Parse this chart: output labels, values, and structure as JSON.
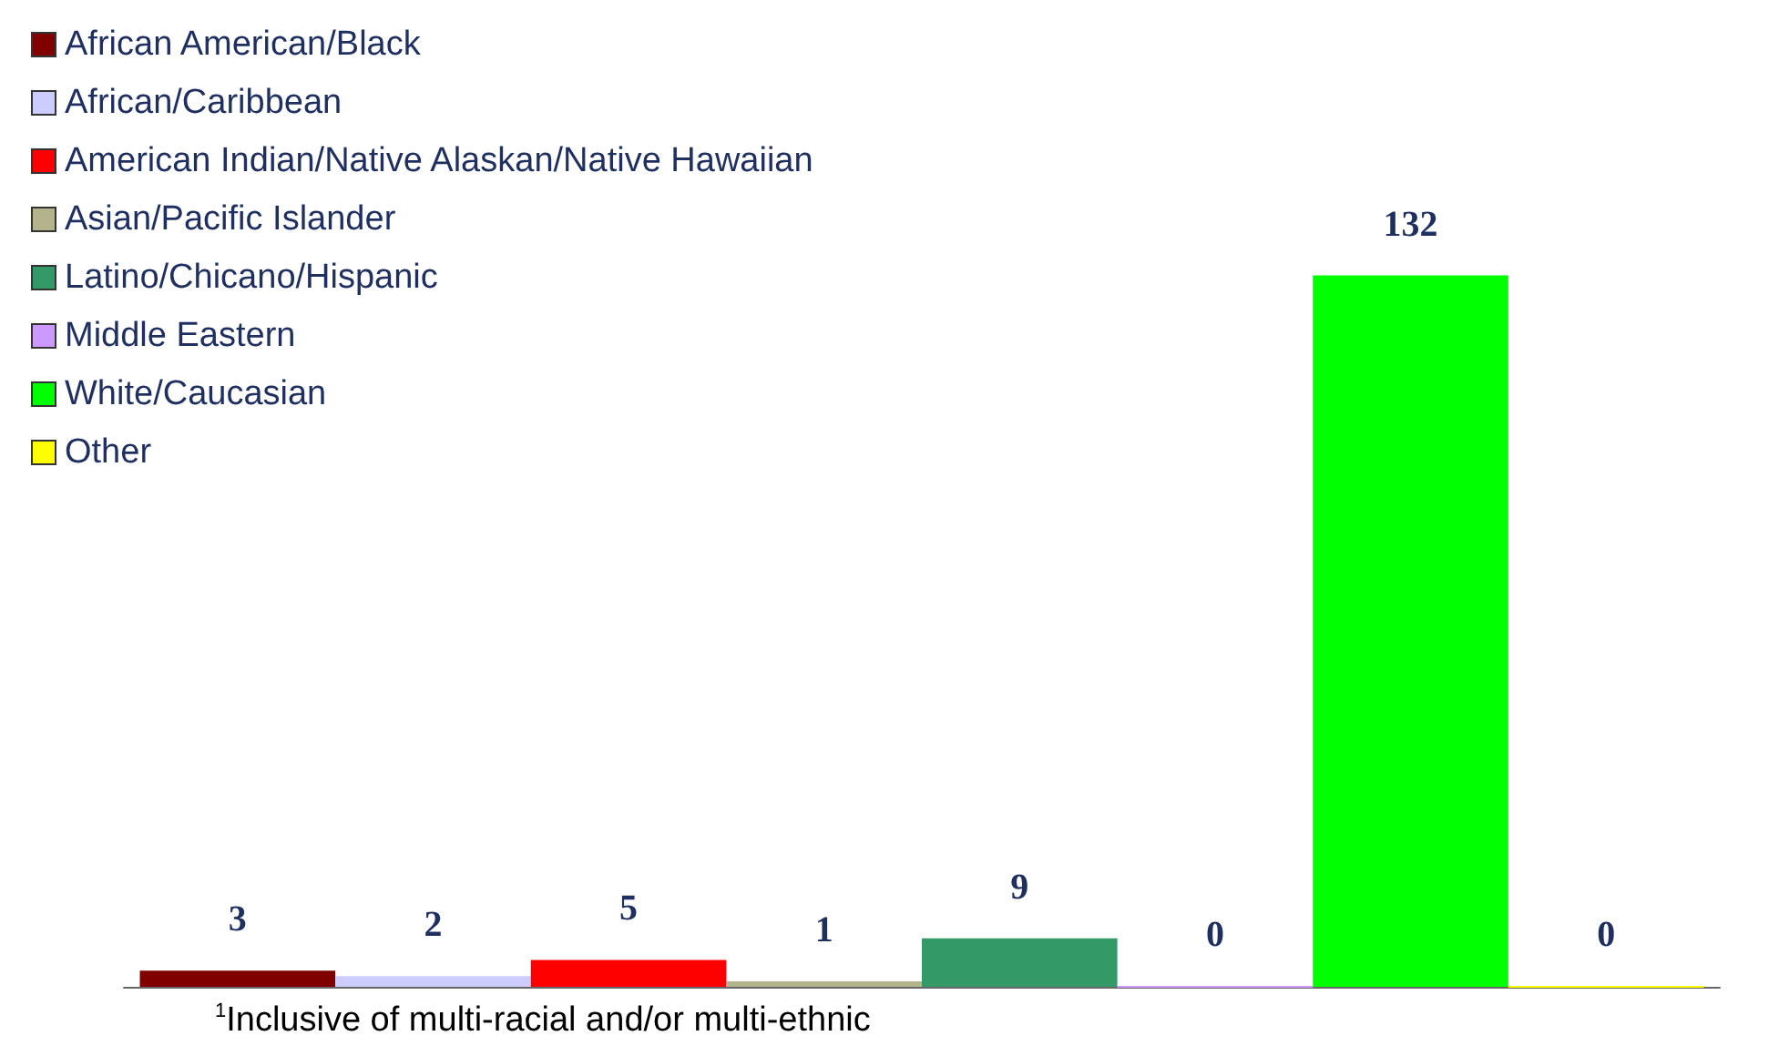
{
  "chart_data": {
    "type": "bar",
    "categories": [
      null
    ],
    "series": [
      {
        "name": "African American/Black",
        "color": "#800000",
        "values": [
          3
        ]
      },
      {
        "name": "African/Caribbean",
        "color": "#ccccff",
        "values": [
          2
        ]
      },
      {
        "name": "American Indian/Native Alaskan/Native Hawaiian",
        "color": "#ff0000",
        "values": [
          5
        ]
      },
      {
        "name": "Asian/Pacific Islander",
        "color": "#b3b38c",
        "values": [
          1
        ]
      },
      {
        "name": "Latino/Chicano/Hispanic",
        "color": "#339966",
        "values": [
          9
        ]
      },
      {
        "name": "Middle Eastern",
        "color": "#cc99ff",
        "values": [
          0
        ]
      },
      {
        "name": "White/Caucasian",
        "color": "#00ff00",
        "values": [
          132
        ]
      },
      {
        "name": "Other",
        "color": "#ffff00",
        "values": [
          0
        ]
      }
    ],
    "data_labels": true,
    "legend": "top left",
    "grid": false,
    "annotations": [
      "$^{1}$Inclusive of multi-racial and/or multi-ethnic"
    ]
  }
}
